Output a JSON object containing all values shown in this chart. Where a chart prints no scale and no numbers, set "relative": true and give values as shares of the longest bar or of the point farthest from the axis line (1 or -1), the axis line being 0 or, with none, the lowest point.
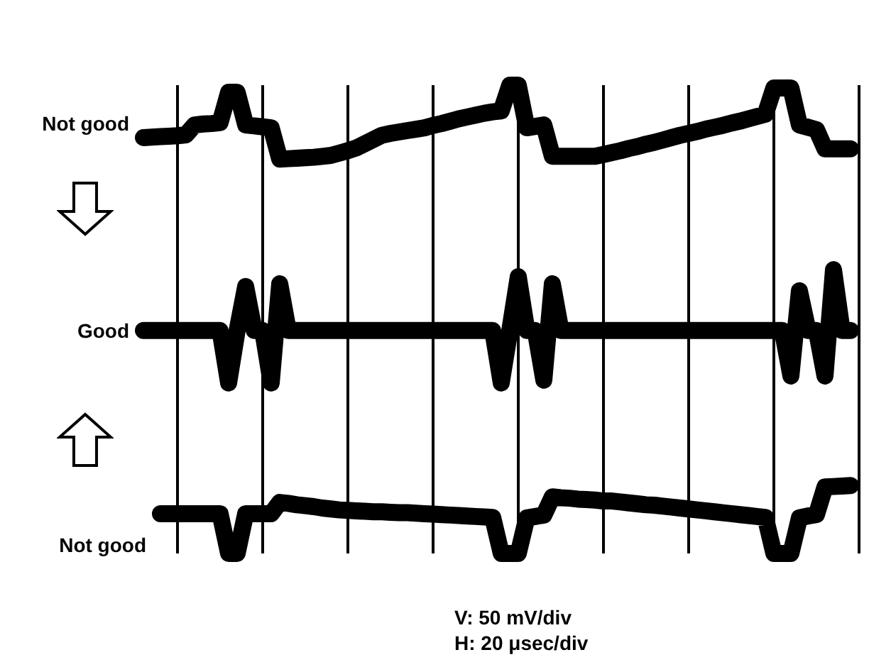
{
  "chart_data": {
    "type": "line",
    "relative": true,
    "grid": "x",
    "marker": "none",
    "line_style": "solid",
    "categories": [
      null,
      null,
      null,
      null,
      null,
      null,
      null,
      null,
      null,
      null,
      null,
      null,
      null,
      null,
      null,
      null,
      null,
      null,
      null,
      null,
      null,
      null,
      null,
      null,
      null,
      null,
      null,
      null,
      null,
      null,
      null,
      null,
      null,
      null,
      null,
      null,
      null,
      null,
      null,
      null,
      null,
      null,
      null,
      null,
      null,
      null,
      null,
      null,
      null,
      null,
      null,
      null,
      null,
      null,
      null,
      null,
      null,
      null,
      null,
      null,
      null,
      null,
      null,
      null,
      null,
      null,
      null,
      null,
      null,
      null,
      null,
      null,
      null,
      null,
      null,
      null,
      null,
      null,
      null,
      null,
      null,
      null,
      null,
      null,
      null
    ],
    "series": [
      {
        "name": "Not good",
        "color": "#000000",
        "values": [
          0.888,
          0.889,
          0.89,
          0.891,
          0.892,
          0.894,
          0.915,
          0.917,
          0.918,
          0.92,
          0.985,
          0.985,
          0.915,
          0.913,
          0.911,
          0.909,
          0.842,
          0.843,
          0.844,
          0.845,
          0.846,
          0.848,
          0.85,
          0.855,
          0.86,
          0.866,
          0.875,
          0.884,
          0.893,
          0.897,
          0.9,
          0.903,
          0.906,
          0.909,
          0.914,
          0.918,
          0.923,
          0.928,
          0.932,
          0.936,
          0.94,
          0.943,
          0.945,
          1,
          1,
          0.909,
          0.912,
          0.915,
          0.848,
          0.848,
          0.848,
          0.848,
          0.848,
          0.848,
          0.852,
          0.856,
          0.86,
          0.865,
          0.869,
          0.874,
          0.878,
          0.883,
          0.888,
          0.893,
          0.897,
          0.901,
          0.906,
          0.91,
          0.914,
          0.919,
          0.923,
          0.928,
          0.933,
          0.938,
          0.994,
          0.994,
          0.994,
          0.915,
          0.91,
          0.905,
          0.864,
          0.864,
          0.864,
          0.864,
          null
        ]
      },
      {
        "name": "Good",
        "color": "#000000",
        "values": [
          0.476,
          0.476,
          0.476,
          0.476,
          0.476,
          0.476,
          0.476,
          0.476,
          0.476,
          0.476,
          0.364,
          0.476,
          0.57,
          0.476,
          0.476,
          0.364,
          0.576,
          0.476,
          0.476,
          0.476,
          0.476,
          0.476,
          0.476,
          0.476,
          0.476,
          0.476,
          0.476,
          0.476,
          0.476,
          0.476,
          0.476,
          0.476,
          0.476,
          0.476,
          0.476,
          0.476,
          0.476,
          0.476,
          0.476,
          0.476,
          0.476,
          0.476,
          0.364,
          0.476,
          0.591,
          0.476,
          0.476,
          0.37,
          0.576,
          0.476,
          0.476,
          0.476,
          0.476,
          0.476,
          0.476,
          0.476,
          0.476,
          0.476,
          0.476,
          0.476,
          0.476,
          0.476,
          0.476,
          0.476,
          0.476,
          0.476,
          0.476,
          0.476,
          0.476,
          0.476,
          0.476,
          0.476,
          0.476,
          0.476,
          0.476,
          0.476,
          0.379,
          0.561,
          0.476,
          0.476,
          0.379,
          0.606,
          0.476,
          0.476,
          null
        ]
      },
      {
        "name": "Not good",
        "color": "#000000",
        "values": [
          null,
          null,
          0.085,
          0.085,
          0.085,
          0.085,
          0.085,
          0.085,
          0.085,
          0.085,
          0,
          0,
          0.085,
          0.085,
          0.085,
          0.085,
          0.109,
          0.107,
          0.104,
          0.102,
          0.1,
          0.097,
          0.095,
          0.093,
          0.092,
          0.091,
          0.09,
          0.089,
          0.089,
          0.088,
          0.087,
          0.087,
          0.086,
          0.085,
          0.084,
          0.083,
          0.082,
          0.081,
          0.08,
          0.079,
          0.078,
          0.077,
          0,
          0,
          0,
          0.076,
          0.079,
          0.082,
          0.121,
          0.119,
          0.118,
          0.116,
          0.115,
          0.114,
          0.112,
          0.112,
          0.11,
          0.108,
          0.106,
          0.104,
          0.103,
          0.101,
          0.099,
          0.097,
          0.095,
          0.093,
          0.091,
          0.089,
          0.087,
          0.085,
          0.083,
          0.081,
          0.079,
          0.077,
          0,
          0,
          0,
          0.076,
          0.08,
          0.083,
          0.142,
          0.143,
          0.144,
          0.145,
          null
        ]
      }
    ],
    "annotations": [
      "V: 50 mV/div",
      "H: 20 μsec/div"
    ]
  }
}
